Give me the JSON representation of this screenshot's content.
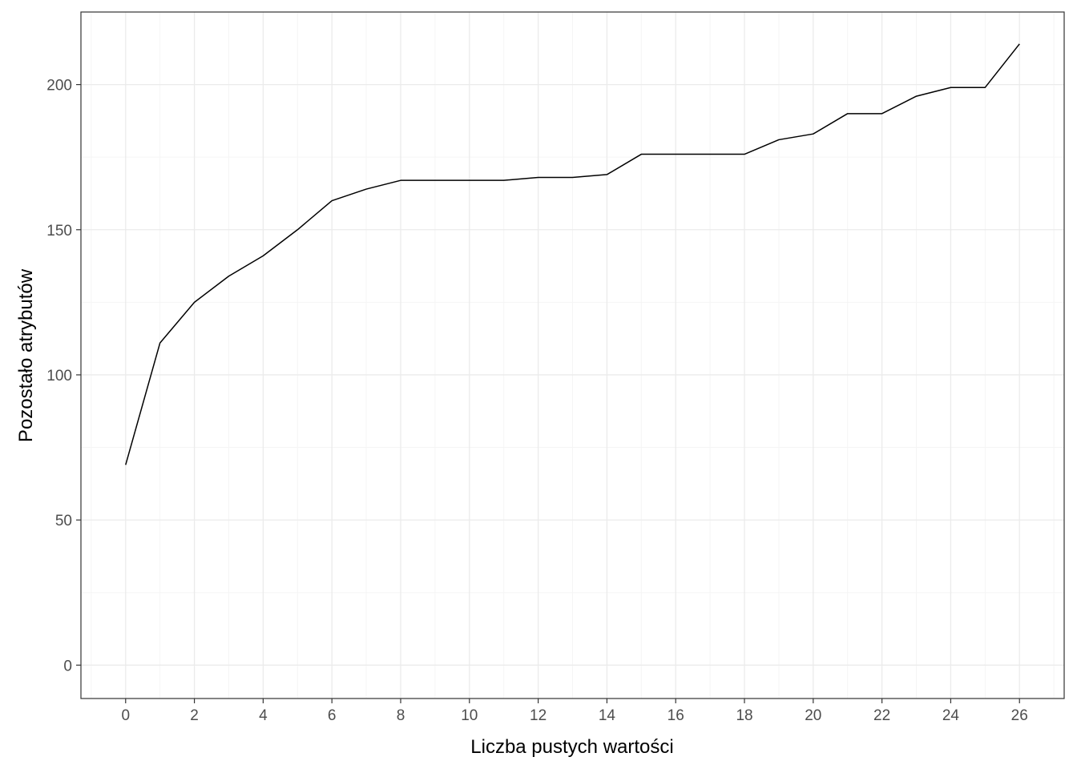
{
  "chart_data": {
    "type": "line",
    "title": "",
    "xlabel": "Liczba pustych wartości",
    "ylabel": "Pozostało atrybutów",
    "xlim": [
      -1.3,
      27.3
    ],
    "ylim": [
      -11.5,
      225
    ],
    "x_ticks": [
      0,
      2,
      4,
      6,
      8,
      10,
      12,
      14,
      16,
      18,
      20,
      22,
      24,
      26
    ],
    "y_ticks": [
      0,
      50,
      100,
      150,
      200
    ],
    "x_tick_labels": [
      "0",
      "2",
      "4",
      "6",
      "8",
      "10",
      "12",
      "14",
      "16",
      "18",
      "20",
      "22",
      "24",
      "26"
    ],
    "y_tick_labels": [
      "0",
      "50",
      "100",
      "150",
      "200"
    ],
    "grid": true,
    "x": [
      0,
      1,
      2,
      3,
      4,
      5,
      6,
      7,
      8,
      9,
      10,
      11,
      12,
      13,
      14,
      15,
      16,
      17,
      18,
      19,
      20,
      21,
      22,
      23,
      24,
      25,
      26
    ],
    "series": [
      {
        "values": [
          69,
          111,
          125,
          134,
          141,
          150,
          160,
          164,
          167,
          167,
          167,
          167,
          168,
          168,
          169,
          176,
          176,
          176,
          176,
          181,
          183,
          190,
          190,
          196,
          199,
          199,
          214
        ],
        "color": "#000000"
      }
    ],
    "colors": {
      "panel_border": "#333333",
      "grid_major": "#ebebeb",
      "grid_minor": "#f5f5f5",
      "tick_text": "#4d4d4d",
      "line": "#000000"
    }
  }
}
